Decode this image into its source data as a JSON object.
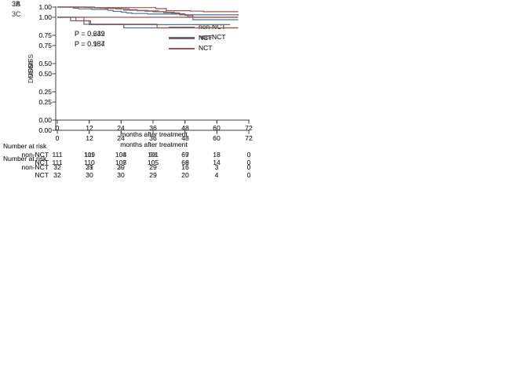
{
  "figure": {
    "risk_header": "Number at risk",
    "xlabel": "months after treatment",
    "x_tick_labels": [
      "0",
      "12",
      "24",
      "36",
      "48",
      "60",
      "72"
    ],
    "y_tick_labels": [
      "1.00",
      "0.75",
      "0.50",
      "0.25",
      "0.00"
    ],
    "legend": [
      "non-NCT",
      "NCT"
    ],
    "colors": {
      "non_nct": "#4e7191",
      "nct": "#a2524f",
      "axis": "#404040"
    }
  },
  "chart_data": [
    {
      "type": "line",
      "panel_label": "3A",
      "ylabel": "DMFS",
      "xlabel": "months after treatment",
      "p_value": "P = 0.232",
      "x_range": [
        0,
        72
      ],
      "y_range": [
        0,
        1
      ],
      "x_ticks": [
        0,
        12,
        24,
        36,
        48,
        60,
        72
      ],
      "y_ticks": [
        1.0,
        0.75,
        0.5,
        0.25,
        0.0
      ],
      "legend_position": "inside-right",
      "series": [
        {
          "name": "non-NCT",
          "color": "#4e7191",
          "steps": [
            [
              0,
              1.0
            ],
            [
              6,
              0.99
            ],
            [
              8,
              0.984
            ],
            [
              13,
              0.979
            ],
            [
              19,
              0.971
            ],
            [
              21,
              0.962
            ],
            [
              24,
              0.955
            ],
            [
              26,
              0.948
            ],
            [
              28,
              0.943
            ],
            [
              34,
              0.938
            ],
            [
              46,
              0.931
            ],
            [
              68,
              0.926
            ]
          ]
        },
        {
          "name": "NCT",
          "color": "#a2524f",
          "steps": [
            [
              0,
              1.0
            ],
            [
              14,
              0.995
            ],
            [
              37,
              0.986
            ],
            [
              41,
              0.968
            ],
            [
              50,
              0.964
            ],
            [
              55,
              0.959
            ],
            [
              68,
              0.959
            ]
          ]
        }
      ],
      "risk_table": {
        "rows": [
          {
            "label": "non-NCT",
            "values": [
              "111",
              "109",
              "104",
              "98",
              "67",
              "18",
              "0"
            ]
          },
          {
            "label": "NCT",
            "values": [
              "111",
              "110",
              "107",
              "105",
              "68",
              "14",
              "0"
            ]
          }
        ]
      }
    },
    {
      "type": "line",
      "panel_label": "3B",
      "ylabel": "OS",
      "xlabel": "months after treatment",
      "p_value": "P = 0.649",
      "x_range": [
        0,
        72
      ],
      "y_range": [
        0,
        1
      ],
      "x_ticks": [
        0,
        12,
        24,
        36,
        48,
        60,
        72
      ],
      "y_ticks": [
        1.0,
        0.75,
        0.5,
        0.25,
        0.0
      ],
      "legend_position": "inside-right",
      "series": [
        {
          "name": "non-NCT",
          "color": "#4e7191",
          "steps": [
            [
              0,
              1.0
            ],
            [
              10,
              0.997
            ],
            [
              14,
              0.993
            ],
            [
              18,
              0.989
            ],
            [
              22,
              0.984
            ],
            [
              25,
              0.972
            ],
            [
              30,
              0.968
            ],
            [
              33,
              0.963
            ],
            [
              36,
              0.958
            ],
            [
              40,
              0.951
            ],
            [
              43,
              0.945
            ],
            [
              45,
              0.94
            ],
            [
              47,
              0.931
            ],
            [
              49,
              0.914
            ],
            [
              51,
              0.888
            ],
            [
              68,
              0.888
            ]
          ]
        },
        {
          "name": "NCT",
          "color": "#a2524f",
          "steps": [
            [
              0,
              1.0
            ],
            [
              12,
              0.996
            ],
            [
              16,
              0.992
            ],
            [
              20,
              0.988
            ],
            [
              24,
              0.983
            ],
            [
              27,
              0.977
            ],
            [
              30,
              0.971
            ],
            [
              34,
              0.966
            ],
            [
              38,
              0.96
            ],
            [
              41,
              0.954
            ],
            [
              44,
              0.948
            ],
            [
              46,
              0.94
            ],
            [
              48,
              0.927
            ],
            [
              51,
              0.91
            ],
            [
              68,
              0.91
            ]
          ]
        }
      ],
      "risk_table": {
        "rows": [
          {
            "label": "non-NCT",
            "values": [
              "111",
              "111",
              "108",
              "101",
              "69",
              "18",
              "0"
            ]
          },
          {
            "label": "NCT",
            "values": [
              "111",
              "110",
              "108",
              "105",
              "69",
              "14",
              "0"
            ]
          }
        ]
      }
    },
    {
      "type": "line",
      "panel_label": "3C",
      "ylabel": "DMFS",
      "xlabel": "months after treatment",
      "p_value": "P = 0.157",
      "x_range": [
        0,
        72
      ],
      "y_range": [
        0,
        1
      ],
      "x_ticks": [
        0,
        12,
        24,
        36,
        48,
        60,
        72
      ],
      "y_ticks": [
        1.0,
        0.75,
        0.5,
        0.25,
        0.0
      ],
      "legend_position": "inside-right",
      "series": [
        {
          "name": "non-NCT",
          "color": "#4e7191",
          "steps": [
            [
              0,
              1.0
            ],
            [
              10,
              0.969
            ],
            [
              12,
              0.935
            ],
            [
              65,
              0.935
            ]
          ]
        },
        {
          "name": "NCT",
          "color": "#a2524f",
          "steps": [
            [
              0,
              1.0
            ],
            [
              68,
              1.0
            ]
          ]
        }
      ],
      "risk_table": {
        "rows": [
          {
            "label": "non-NCT",
            "values": [
              "32",
              "29",
              "29",
              "29",
              "16",
              "3",
              "0"
            ]
          },
          {
            "label": "NCT",
            "values": [
              "32",
              "30",
              "30",
              "29",
              "20",
              "4",
              "0"
            ]
          }
        ]
      }
    },
    {
      "type": "line",
      "panel_label": "",
      "ylabel": "OS",
      "xlabel": "months after treatment",
      "p_value": "P = 0.984",
      "x_range": [
        0,
        72
      ],
      "y_range": [
        0,
        1
      ],
      "x_ticks": [
        0,
        12,
        24,
        36,
        48,
        60,
        72
      ],
      "y_ticks": [
        1.0,
        0.75,
        0.5,
        0.25,
        0.0
      ],
      "legend_position": "inside-right",
      "series": [
        {
          "name": "non-NCT",
          "color": "#4e7191",
          "steps": [
            [
              0,
              1.0
            ],
            [
              5,
              0.969
            ],
            [
              10,
              0.938
            ],
            [
              25,
              0.906
            ],
            [
              68,
              0.906
            ]
          ]
        },
        {
          "name": "NCT",
          "color": "#a2524f",
          "steps": [
            [
              0,
              1.0
            ],
            [
              7,
              0.969
            ],
            [
              12.5,
              0.938
            ],
            [
              37.5,
              0.906
            ],
            [
              68,
              0.906
            ]
          ]
        }
      ],
      "risk_table": {
        "rows": [
          {
            "label": "non-NCT",
            "values": [
              "32",
              "31",
              "30",
              "29",
              "16",
              "3",
              "0"
            ]
          },
          {
            "label": "NCT",
            "values": [
              "32",
              "30",
              "30",
              "29",
              "20",
              "4",
              "0"
            ]
          }
        ]
      }
    }
  ]
}
